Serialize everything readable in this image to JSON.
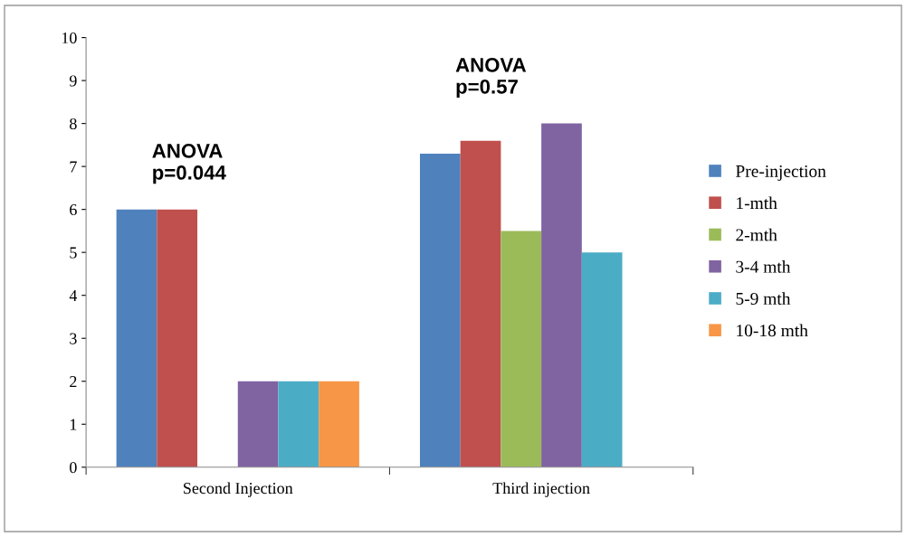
{
  "chart_data": {
    "type": "bar",
    "categories": [
      "Second Injection",
      "Third injection"
    ],
    "series": [
      {
        "name": "Pre-injection",
        "color": "#4f81bd",
        "values": [
          6,
          7.3
        ]
      },
      {
        "name": "1-mth",
        "color": "#c0504d",
        "values": [
          6,
          7.6
        ]
      },
      {
        "name": "2-mth",
        "color": "#9bbb59",
        "values": [
          null,
          5.5
        ]
      },
      {
        "name": "3-4 mth",
        "color": "#8064a2",
        "values": [
          2,
          8
        ]
      },
      {
        "name": "5-9 mth",
        "color": "#4bacc6",
        "values": [
          2,
          5
        ]
      },
      {
        "name": "10-18 mth",
        "color": "#f79646",
        "values": [
          2,
          null
        ]
      }
    ],
    "ylim": [
      0,
      10
    ],
    "yticks": [
      0,
      1,
      2,
      3,
      4,
      5,
      6,
      7,
      8,
      9,
      10
    ],
    "annotations": [
      "ANOVA\np=0.044",
      "ANOVA\np=0.57"
    ],
    "legend": "right",
    "grid": false
  }
}
